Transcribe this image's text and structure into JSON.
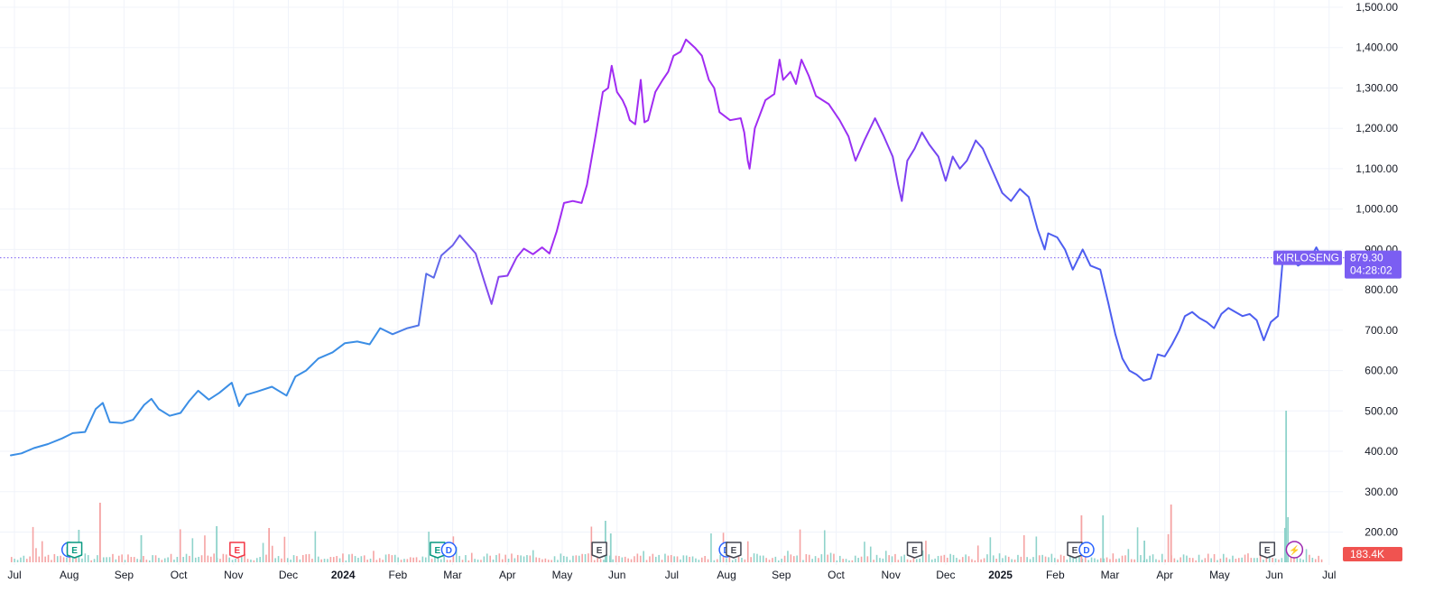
{
  "chart_data": {
    "type": "line",
    "title": "",
    "xlabel": "",
    "ylabel": "",
    "ylim": [
      150,
      1500
    ],
    "grid": true,
    "y_ticks": [
      "1,500.00",
      "1,400.00",
      "1,300.00",
      "1,200.00",
      "1,100.00",
      "1,000.00",
      "900.00",
      "800.00",
      "700.00",
      "600.00",
      "500.00",
      "400.00",
      "300.00",
      "200.00"
    ],
    "y_tick_values": [
      1500,
      1400,
      1300,
      1200,
      1100,
      1000,
      900,
      800,
      700,
      600,
      500,
      400,
      300,
      200
    ],
    "x_ticks": [
      "Jul",
      "Aug",
      "Sep",
      "Oct",
      "Nov",
      "Dec",
      "2024",
      "Feb",
      "Mar",
      "Apr",
      "May",
      "Jun",
      "Jul",
      "Aug",
      "Sep",
      "Oct",
      "Nov",
      "Dec",
      "2025",
      "Feb",
      "Mar",
      "Apr",
      "May",
      "Jun",
      "Jul"
    ],
    "x_tick_bold": [
      false,
      false,
      false,
      false,
      false,
      false,
      true,
      false,
      false,
      false,
      false,
      false,
      false,
      false,
      false,
      false,
      false,
      false,
      true,
      false,
      false,
      false,
      false,
      false,
      false
    ],
    "x_tick_index": [
      0,
      1,
      2,
      3,
      4,
      5,
      6,
      7,
      8,
      9,
      10,
      11,
      12,
      13,
      14,
      15,
      16,
      17,
      18,
      19,
      20,
      21,
      22,
      23,
      24
    ],
    "x_months": [
      "2023-07",
      "2023-08",
      "2023-09",
      "2023-10",
      "2023-11",
      "2023-12",
      "2024-01",
      "2024-02",
      "2024-03",
      "2024-04",
      "2024-05",
      "2024-06",
      "2024-07",
      "2024-08",
      "2024-09",
      "2024-10",
      "2024-11",
      "2024-12",
      "2025-01",
      "2025-02",
      "2025-03",
      "2025-04",
      "2025-05",
      "2025-06",
      "2025-07"
    ],
    "series": [
      {
        "color_start": "#3b8ee5",
        "color_mid": "#a12cf2",
        "color_end": "#4d5ef0",
        "points": [
          [
            "2023-06-29",
            390
          ],
          [
            "2023-07-05",
            395
          ],
          [
            "2023-07-12",
            408
          ],
          [
            "2023-07-20",
            418
          ],
          [
            "2023-07-28",
            432
          ],
          [
            "2023-08-03",
            445
          ],
          [
            "2023-08-10",
            448
          ],
          [
            "2023-08-16",
            505
          ],
          [
            "2023-08-20",
            520
          ],
          [
            "2023-08-24",
            472
          ],
          [
            "2023-08-31",
            470
          ],
          [
            "2023-09-06",
            478
          ],
          [
            "2023-09-12",
            515
          ],
          [
            "2023-09-16",
            530
          ],
          [
            "2023-09-20",
            505
          ],
          [
            "2023-09-26",
            488
          ],
          [
            "2023-10-02",
            495
          ],
          [
            "2023-10-07",
            525
          ],
          [
            "2023-10-12",
            550
          ],
          [
            "2023-10-18",
            528
          ],
          [
            "2023-10-24",
            545
          ],
          [
            "2023-10-31",
            570
          ],
          [
            "2023-11-04",
            512
          ],
          [
            "2023-11-08",
            540
          ],
          [
            "2023-11-14",
            548
          ],
          [
            "2023-11-22",
            560
          ],
          [
            "2023-11-30",
            538
          ],
          [
            "2023-12-05",
            585
          ],
          [
            "2023-12-11",
            600
          ],
          [
            "2023-12-18",
            630
          ],
          [
            "2023-12-26",
            645
          ],
          [
            "2024-01-02",
            668
          ],
          [
            "2024-01-09",
            672
          ],
          [
            "2024-01-16",
            665
          ],
          [
            "2024-01-22",
            705
          ],
          [
            "2024-01-29",
            690
          ],
          [
            "2024-02-06",
            705
          ],
          [
            "2024-02-12",
            712
          ],
          [
            "2024-02-16",
            840
          ],
          [
            "2024-02-20",
            830
          ],
          [
            "2024-02-24",
            885
          ],
          [
            "2024-03-01",
            910
          ],
          [
            "2024-03-05",
            935
          ],
          [
            "2024-03-09",
            915
          ],
          [
            "2024-03-14",
            890
          ],
          [
            "2024-03-19",
            820
          ],
          [
            "2024-03-23",
            765
          ],
          [
            "2024-03-27",
            832
          ],
          [
            "2024-04-01",
            835
          ],
          [
            "2024-04-06",
            880
          ],
          [
            "2024-04-10",
            902
          ],
          [
            "2024-04-15",
            888
          ],
          [
            "2024-04-20",
            905
          ],
          [
            "2024-04-24",
            890
          ],
          [
            "2024-04-28",
            945
          ],
          [
            "2024-05-02",
            1015
          ],
          [
            "2024-05-07",
            1020
          ],
          [
            "2024-05-12",
            1015
          ],
          [
            "2024-05-15",
            1060
          ],
          [
            "2024-05-20",
            1185
          ],
          [
            "2024-05-24",
            1290
          ],
          [
            "2024-05-27",
            1300
          ],
          [
            "2024-05-29",
            1355
          ],
          [
            "2024-06-01",
            1290
          ],
          [
            "2024-06-04",
            1270
          ],
          [
            "2024-06-06",
            1250
          ],
          [
            "2024-06-08",
            1220
          ],
          [
            "2024-06-11",
            1210
          ],
          [
            "2024-06-14",
            1320
          ],
          [
            "2024-06-16",
            1215
          ],
          [
            "2024-06-18",
            1220
          ],
          [
            "2024-06-22",
            1290
          ],
          [
            "2024-06-26",
            1320
          ],
          [
            "2024-06-29",
            1340
          ],
          [
            "2024-07-02",
            1380
          ],
          [
            "2024-07-06",
            1390
          ],
          [
            "2024-07-09",
            1420
          ],
          [
            "2024-07-14",
            1400
          ],
          [
            "2024-07-18",
            1380
          ],
          [
            "2024-07-22",
            1320
          ],
          [
            "2024-07-25",
            1300
          ],
          [
            "2024-07-28",
            1240
          ],
          [
            "2024-08-03",
            1220
          ],
          [
            "2024-08-09",
            1225
          ],
          [
            "2024-08-11",
            1190
          ],
          [
            "2024-08-13",
            1120
          ],
          [
            "2024-08-14",
            1100
          ],
          [
            "2024-08-17",
            1200
          ],
          [
            "2024-08-20",
            1235
          ],
          [
            "2024-08-23",
            1270
          ],
          [
            "2024-08-28",
            1285
          ],
          [
            "2024-08-31",
            1370
          ],
          [
            "2024-09-02",
            1320
          ],
          [
            "2024-09-06",
            1340
          ],
          [
            "2024-09-09",
            1310
          ],
          [
            "2024-09-12",
            1370
          ],
          [
            "2024-09-16",
            1330
          ],
          [
            "2024-09-20",
            1280
          ],
          [
            "2024-09-27",
            1260
          ],
          [
            "2024-10-03",
            1220
          ],
          [
            "2024-10-08",
            1180
          ],
          [
            "2024-10-12",
            1120
          ],
          [
            "2024-10-17",
            1170
          ],
          [
            "2024-10-23",
            1225
          ],
          [
            "2024-10-28",
            1180
          ],
          [
            "2024-11-02",
            1130
          ],
          [
            "2024-11-05",
            1060
          ],
          [
            "2024-11-07",
            1020
          ],
          [
            "2024-11-10",
            1120
          ],
          [
            "2024-11-14",
            1150
          ],
          [
            "2024-11-18",
            1190
          ],
          [
            "2024-11-22",
            1160
          ],
          [
            "2024-11-27",
            1130
          ],
          [
            "2024-12-01",
            1070
          ],
          [
            "2024-12-05",
            1130
          ],
          [
            "2024-12-09",
            1100
          ],
          [
            "2024-12-13",
            1120
          ],
          [
            "2024-12-18",
            1170
          ],
          [
            "2024-12-22",
            1150
          ],
          [
            "2024-12-27",
            1100
          ],
          [
            "2025-01-02",
            1040
          ],
          [
            "2025-01-07",
            1020
          ],
          [
            "2025-01-12",
            1050
          ],
          [
            "2025-01-17",
            1030
          ],
          [
            "2025-01-22",
            950
          ],
          [
            "2025-01-26",
            900
          ],
          [
            "2025-01-28",
            940
          ],
          [
            "2025-02-02",
            930
          ],
          [
            "2025-02-06",
            900
          ],
          [
            "2025-02-10",
            850
          ],
          [
            "2025-02-15",
            900
          ],
          [
            "2025-02-19",
            860
          ],
          [
            "2025-02-24",
            850
          ],
          [
            "2025-02-28",
            770
          ],
          [
            "2025-03-04",
            690
          ],
          [
            "2025-03-08",
            630
          ],
          [
            "2025-03-12",
            600
          ],
          [
            "2025-03-16",
            590
          ],
          [
            "2025-03-20",
            575
          ],
          [
            "2025-03-24",
            580
          ],
          [
            "2025-03-28",
            640
          ],
          [
            "2025-04-01",
            635
          ],
          [
            "2025-04-05",
            665
          ],
          [
            "2025-04-09",
            700
          ],
          [
            "2025-04-12",
            735
          ],
          [
            "2025-04-16",
            745
          ],
          [
            "2025-04-20",
            730
          ],
          [
            "2025-04-24",
            720
          ],
          [
            "2025-04-28",
            705
          ],
          [
            "2025-05-02",
            740
          ],
          [
            "2025-05-06",
            755
          ],
          [
            "2025-05-10",
            745
          ],
          [
            "2025-05-14",
            735
          ],
          [
            "2025-05-18",
            740
          ],
          [
            "2025-05-22",
            725
          ],
          [
            "2025-05-26",
            675
          ],
          [
            "2025-05-30",
            720
          ],
          [
            "2025-06-03",
            735
          ],
          [
            "2025-06-06",
            895
          ],
          [
            "2025-06-10",
            880
          ],
          [
            "2025-06-14",
            860
          ],
          [
            "2025-06-18",
            870
          ],
          [
            "2025-06-21",
            880
          ],
          [
            "2025-06-24",
            905
          ],
          [
            "2025-06-27",
            879.3
          ]
        ]
      }
    ],
    "last_price": 879.3,
    "last_price_label": "879.30",
    "countdown_label": "04:28:02",
    "symbol_label": "KIRLOSENG",
    "label_color": "#7b5ef2",
    "volume_label": "183.4K",
    "volume_label_color": "#f05350",
    "events": [
      {
        "letter": "D",
        "date": "2023-08-01",
        "style": "dividend"
      },
      {
        "letter": "E",
        "date": "2023-08-04",
        "style": "earnings-green"
      },
      {
        "letter": "E",
        "date": "2023-11-03",
        "style": "earnings-red"
      },
      {
        "letter": "E",
        "date": "2024-02-22",
        "style": "earnings-green"
      },
      {
        "letter": "D",
        "date": "2024-02-28",
        "style": "dividend"
      },
      {
        "letter": "E",
        "date": "2024-05-22",
        "style": "earnings-dark"
      },
      {
        "letter": "D",
        "date": "2024-08-01",
        "style": "dividend"
      },
      {
        "letter": "E",
        "date": "2024-08-05",
        "style": "earnings-dark"
      },
      {
        "letter": "E",
        "date": "2024-11-14",
        "style": "earnings-dark"
      },
      {
        "letter": "E",
        "date": "2025-02-11",
        "style": "earnings-dark"
      },
      {
        "letter": "D",
        "date": "2025-02-17",
        "style": "dividend"
      },
      {
        "letter": "E",
        "date": "2025-05-28",
        "style": "earnings-dark"
      },
      {
        "letter": "⚡",
        "date": "2025-06-12",
        "style": "split"
      }
    ],
    "volume_spikes": [
      [
        0.4,
        0.2
      ],
      [
        0.62,
        0.28
      ],
      [
        0.25,
        0.38
      ],
      [
        0.15,
        0.24
      ],
      [
        0.2,
        0.28
      ],
      [
        0.3,
        0.18
      ],
      [
        0.22,
        0.3
      ],
      [
        0.18,
        0.14
      ],
      [
        0.35,
        0.2
      ],
      [
        0.2,
        0.36
      ],
      [
        0.55,
        0.22
      ],
      [
        0.18,
        0.2
      ],
      [
        0.12,
        1.0
      ],
      [
        0.42,
        0.14
      ],
      [
        0.4,
        0.2
      ],
      [
        0.2,
        0.18
      ],
      [
        0.12,
        0.18
      ],
      [
        0.15,
        0.22
      ],
      [
        0.22,
        0.2
      ],
      [
        0.35,
        0.14
      ],
      [
        0.32,
        0.2
      ],
      [
        0.2,
        0.48
      ],
      [
        0.54,
        0.38
      ],
      [
        0.18,
        0.16
      ]
    ]
  }
}
